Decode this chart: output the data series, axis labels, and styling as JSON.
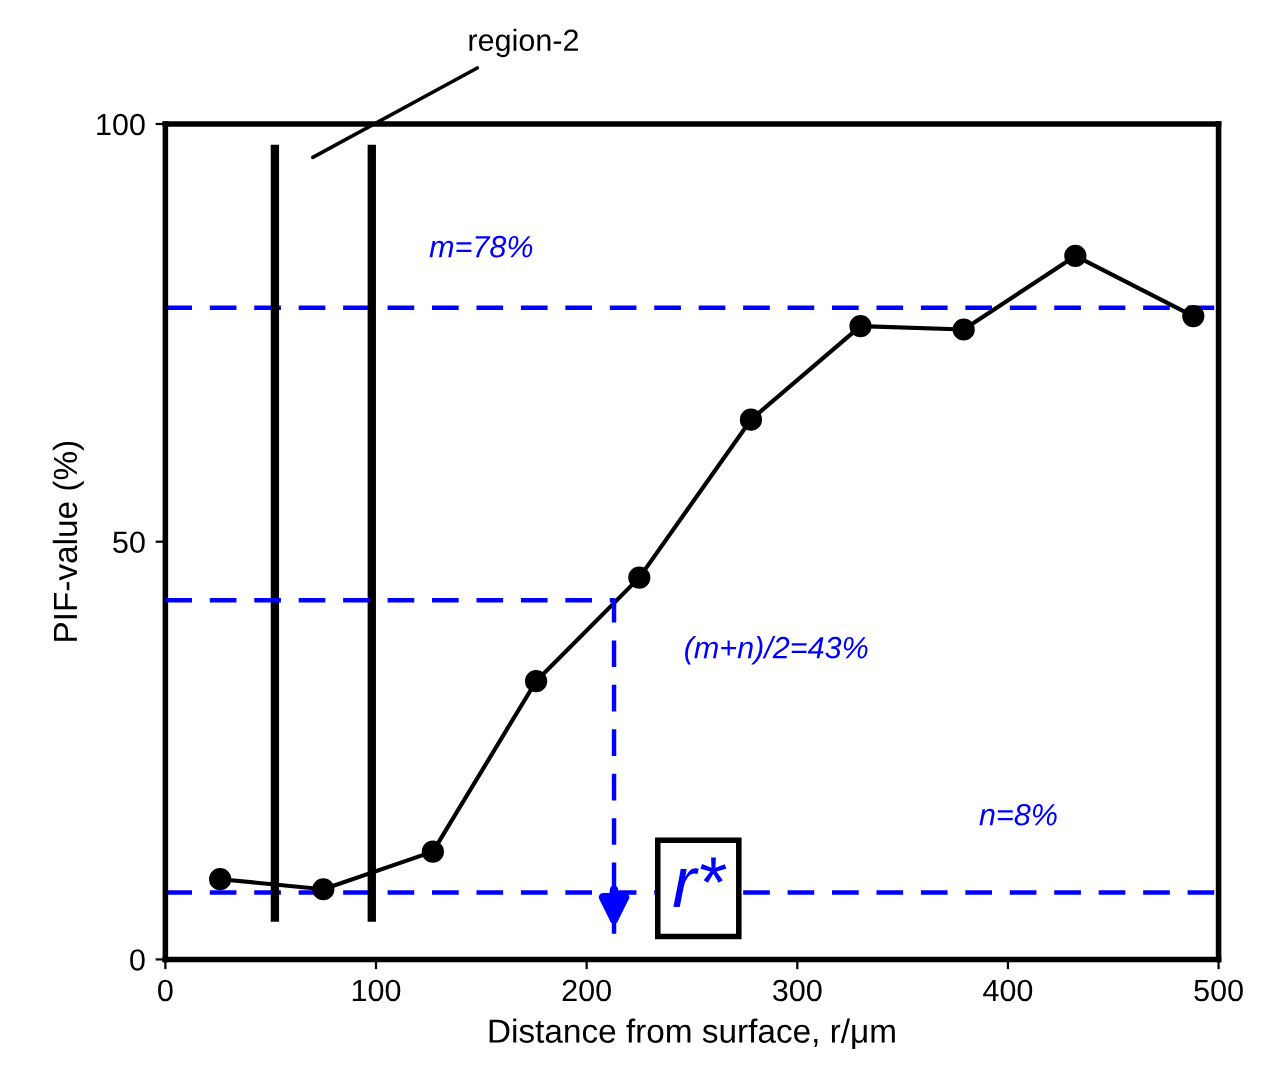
{
  "chart_data": {
    "type": "line",
    "xlabel": "Distance from surface, r/μm",
    "ylabel": "PIF-value (%)",
    "xlim": [
      0,
      500
    ],
    "ylim": [
      0,
      100
    ],
    "xticks": [
      0,
      100,
      200,
      300,
      400,
      500
    ],
    "yticks": [
      0,
      50,
      100
    ],
    "grid": false,
    "legend": false,
    "marker": "circle",
    "line_style": "solid",
    "series": [
      {
        "color": "#000000",
        "x": [
          26,
          75,
          127,
          176,
          225,
          278,
          330,
          379,
          432,
          488
        ],
        "values": [
          9.6,
          8.4,
          12.9,
          33.3,
          45.7,
          64.6,
          75.8,
          75.4,
          84.2,
          77.0
        ]
      },
      {
        "color": "#0000ff",
        "marker": "none",
        "line_style": "dashed",
        "x": [
          0,
          213,
          213
        ],
        "values": [
          43,
          43,
          3
        ]
      }
    ],
    "ref_lines": [
      {
        "axis": "y",
        "value": 78,
        "color": "#0000ff",
        "line_style": "dashed"
      },
      {
        "axis": "y",
        "value": 8,
        "color": "#0000ff",
        "line_style": "dashed"
      },
      {
        "axis": "x",
        "value": 52,
        "color": "#000000",
        "line_style": "solid"
      },
      {
        "axis": "x",
        "value": 98,
        "color": "#000000",
        "line_style": "solid"
      }
    ],
    "annotations": [
      "m=78%",
      "(m+n)/2=43%",
      "n=8%",
      "r*",
      "region-2"
    ]
  }
}
